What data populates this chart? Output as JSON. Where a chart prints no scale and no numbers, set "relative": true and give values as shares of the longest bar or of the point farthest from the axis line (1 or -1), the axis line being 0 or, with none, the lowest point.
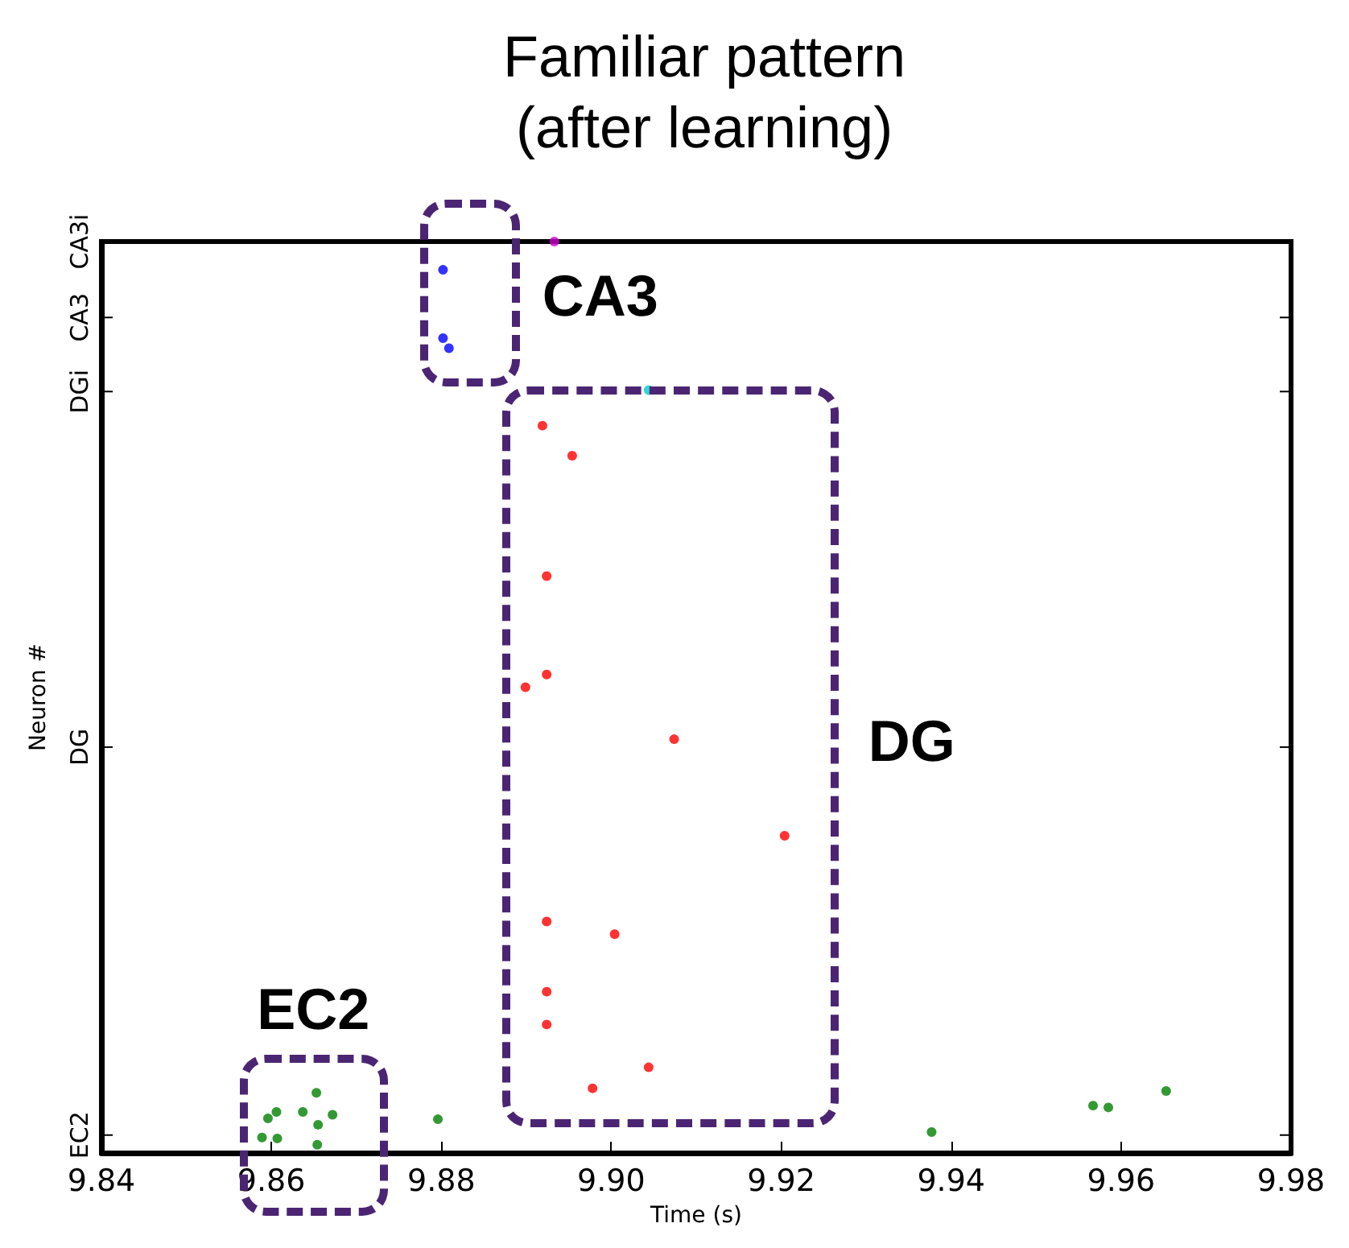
{
  "chart_data": {
    "type": "scatter",
    "title": "Familiar pattern\n(after learning)",
    "xlabel": "Time (s)",
    "ylabel": "Neuron #",
    "xlim": [
      9.84,
      9.98
    ],
    "xticks": [
      9.84,
      9.86,
      9.88,
      {
        "value": 9.9,
        "label": "9.90"
      },
      9.92,
      9.94,
      9.96,
      9.98
    ],
    "relative": true,
    "grid": false,
    "marker": "circle",
    "series": [
      {
        "color": "#008000",
        "x": [
          9.8589,
          9.8596,
          9.8606,
          9.8607,
          9.8637,
          9.8653,
          9.8655,
          9.8672,
          9.8654,
          9.8796,
          9.9377,
          9.9567,
          9.9585,
          9.9653
        ],
        "values": [
          0.017,
          0.038,
          0.045,
          0.016,
          0.045,
          0.066,
          0.031,
          0.042,
          0.009,
          0.037,
          0.023,
          0.052,
          0.05,
          0.068
        ]
      },
      {
        "color": "#ff0000",
        "x": [
          9.8919,
          9.8954,
          9.8924,
          9.8924,
          9.8899,
          9.9074,
          9.9204,
          9.8924,
          9.9004,
          9.8924,
          9.8924,
          9.9044,
          9.8978
        ],
        "values": [
          0.798,
          0.765,
          0.633,
          0.525,
          0.511,
          0.454,
          0.348,
          0.254,
          0.24,
          0.177,
          0.141,
          0.094,
          0.071
        ]
      },
      {
        "color": "#00cccc",
        "x": [
          9.9044
        ],
        "values": [
          0.837
        ]
      },
      {
        "color": "#0000ff",
        "x": [
          9.8802,
          9.8802,
          9.8809
        ],
        "values": [
          0.969,
          0.894,
          0.883
        ]
      },
      {
        "color": "#cc00cc",
        "x": [
          9.8933
        ],
        "values": [
          1
        ]
      }
    ],
    "annotations": [
      "EC2",
      "DG",
      "CA3",
      "EC2",
      "DG",
      "DGi",
      "CA3",
      "CA3i"
    ]
  }
}
